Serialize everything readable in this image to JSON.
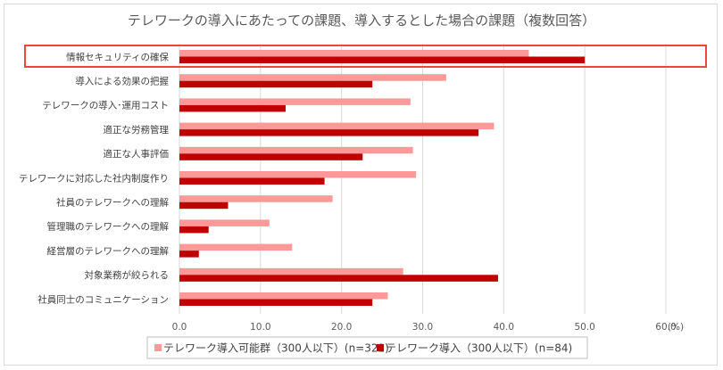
{
  "chart_data": {
    "type": "bar",
    "orientation": "horizontal",
    "title": "テレワークの導入にあたっての課題、導入するとした場合の課題（複数回答）",
    "categories": [
      "情報セキュリティの確保",
      "導入による効果の把握",
      "テレワークの導入･運用コスト",
      "適正な労務管理",
      "適正な人事評価",
      "テレワークに対応した社内制度作り",
      "社員のテレワークへの理解",
      "管理職のテレワークへの理解",
      "経営層のテレワークへの理解",
      "対象業務が絞られる",
      "社員同士のコミュニケーション"
    ],
    "series": [
      {
        "name": "テレワーク導入可能群（300人以下）(n=322)",
        "color": "#ff9999",
        "values": [
          43.1,
          32.9,
          28.5,
          38.8,
          28.8,
          29.2,
          18.9,
          11.1,
          13.9,
          27.6,
          25.7
        ]
      },
      {
        "name": "テレワーク導入（300人以下）(n=84)",
        "color": "#c00000",
        "values": [
          50.0,
          23.8,
          13.1,
          36.9,
          22.6,
          17.9,
          6.0,
          3.6,
          2.4,
          39.3,
          23.8
        ]
      }
    ],
    "x_ticks": [
      "0.0",
      "10.0",
      "20.0",
      "30.0",
      "40.0",
      "50.0",
      "60.0"
    ],
    "unit": "(%)",
    "xlim": [
      0,
      60
    ],
    "grid": true,
    "legend_position": "bottom",
    "highlighted_category": "情報セキュリティの確保",
    "highlight_color": "#e8493a"
  }
}
